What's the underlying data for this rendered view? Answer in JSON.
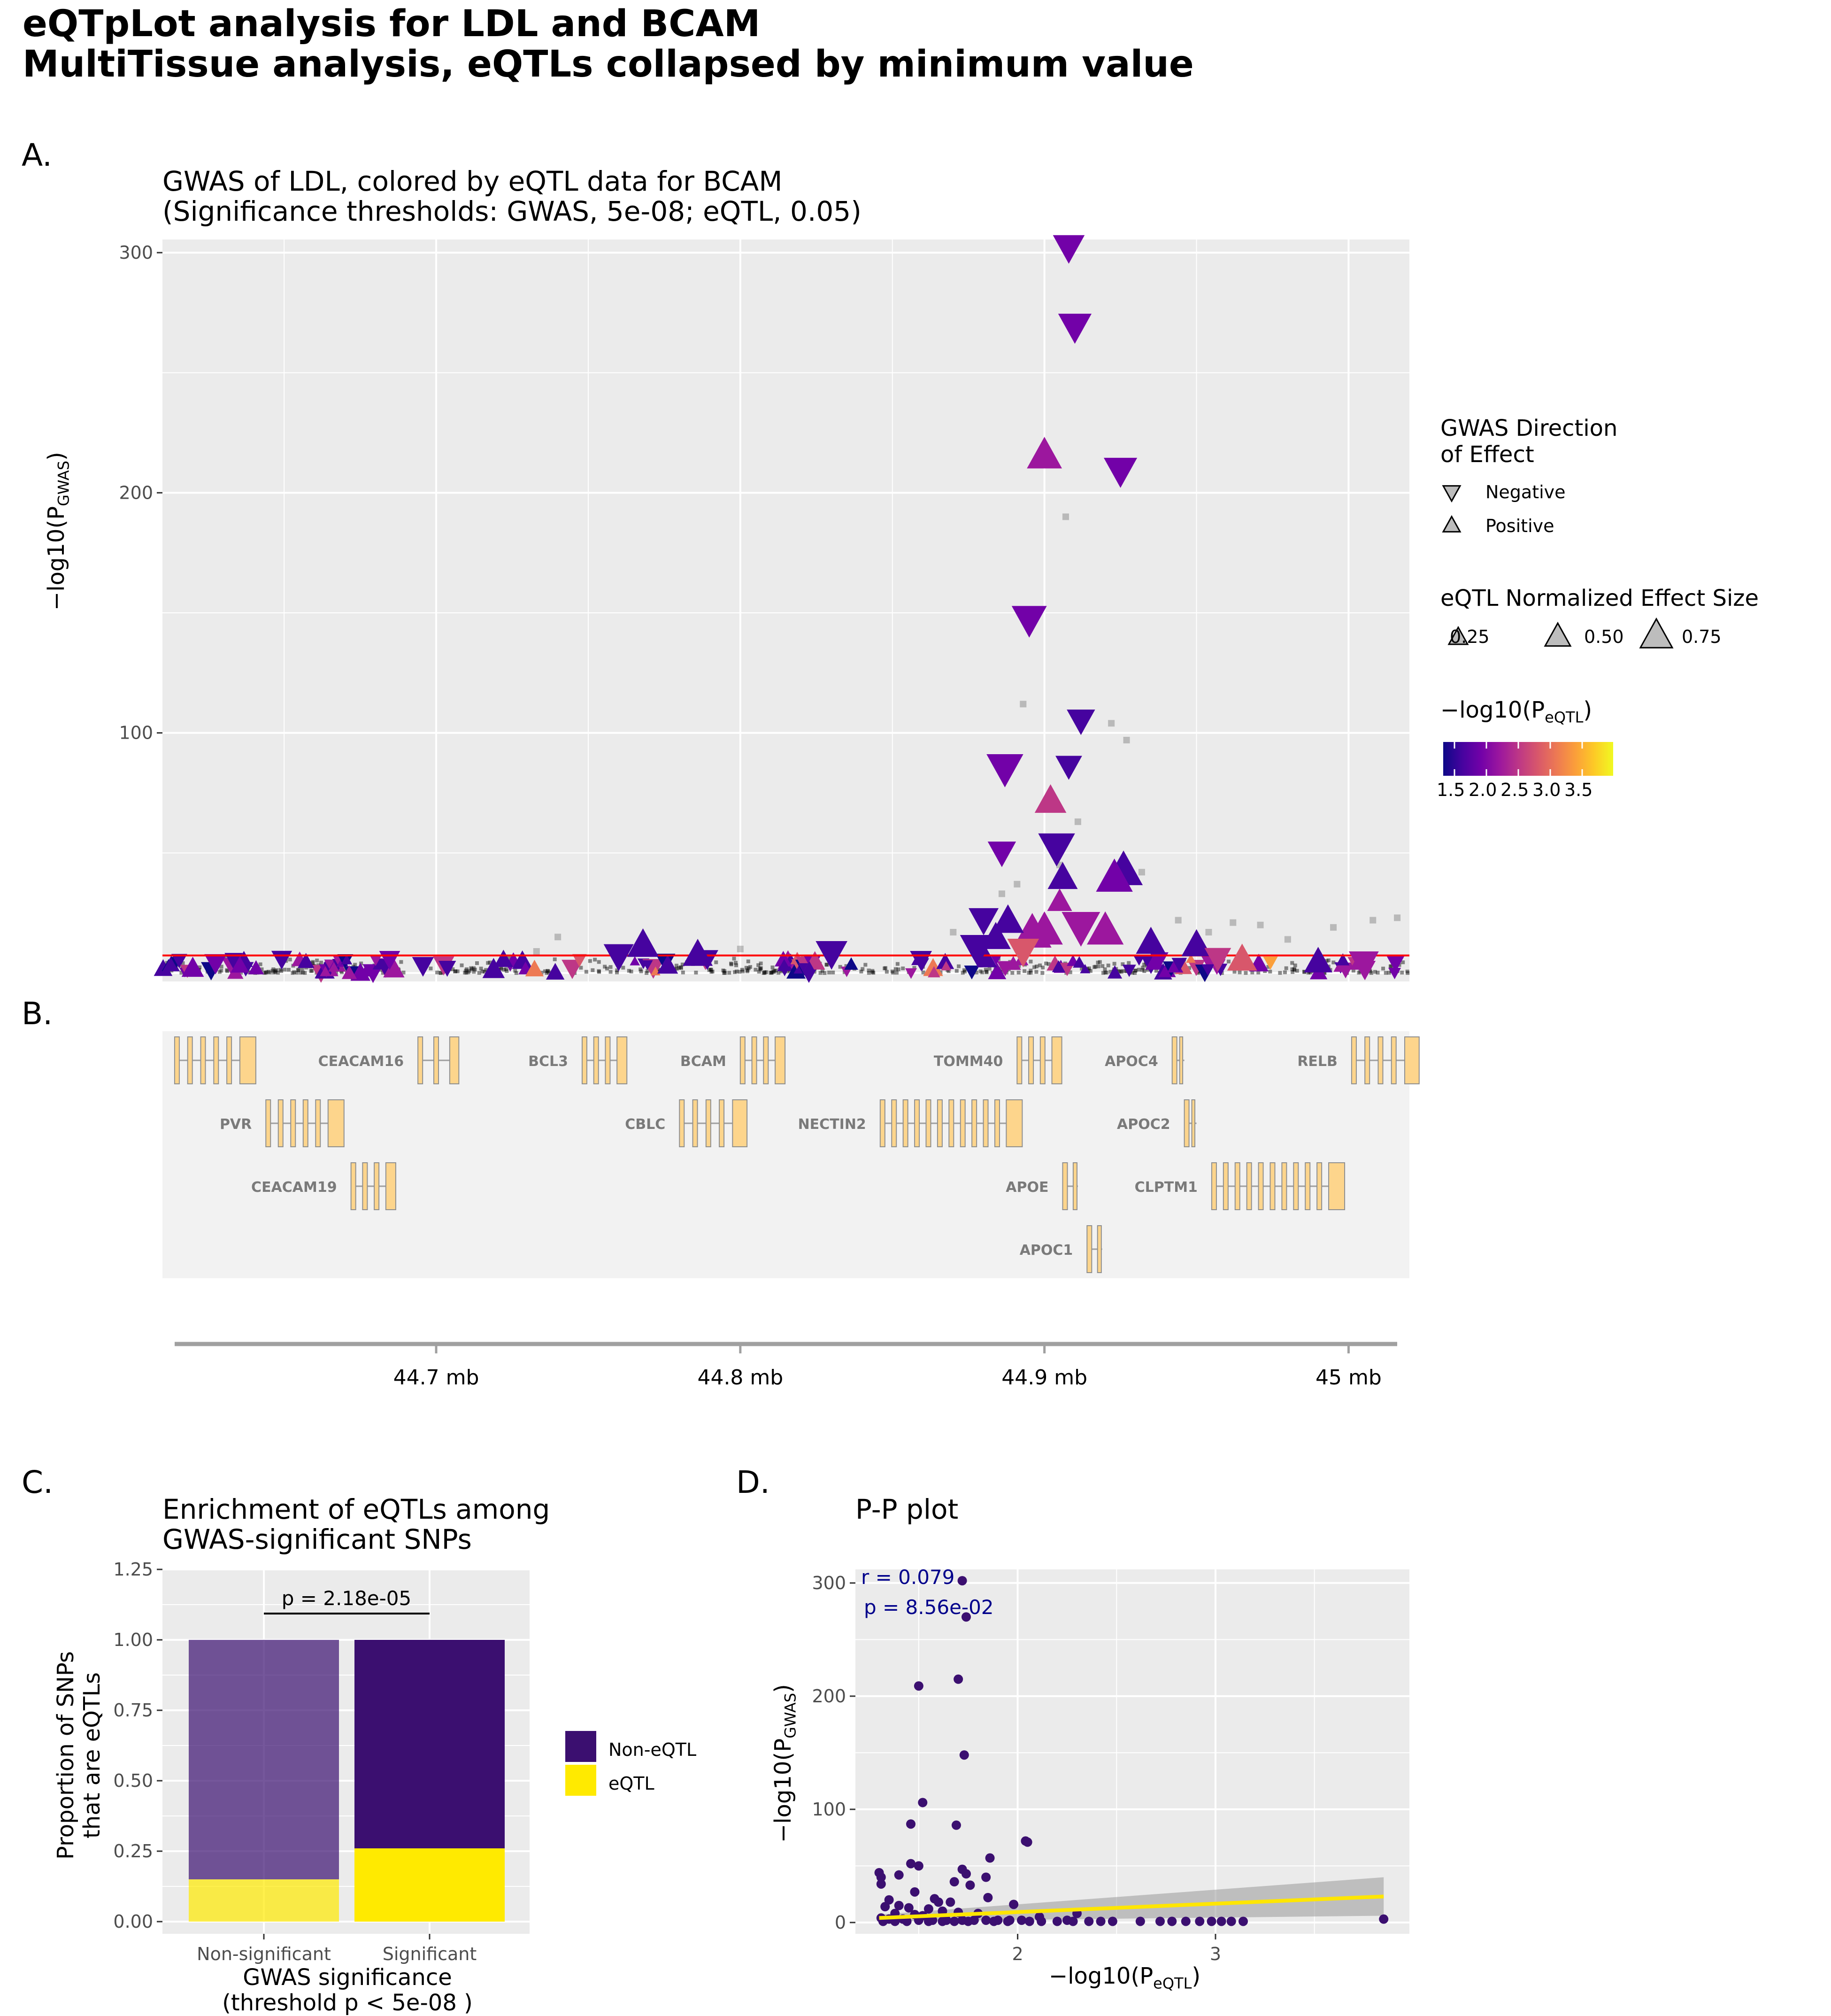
{
  "title": {
    "line1": "eQTpLot analysis for LDL and BCAM",
    "line2": "MultiTissue analysis, eQTLs collapsed by minimum value"
  },
  "panels": {
    "A": "A.",
    "B": "B.",
    "C": "C.",
    "D": "D."
  },
  "colors": {
    "panel_bg": "#ebebeb",
    "gene_track_bg": "#f2f2f2",
    "grid": "#ffffff",
    "threshold_line": "#ff0000",
    "gene_fill": "#fdd58c",
    "non_eqtl": "#3b0f70",
    "eqtl": "#ffea00",
    "smooth": "#ffe600",
    "annotation": "#00008b",
    "palette": [
      "#0d0887",
      "#46039f",
      "#7201a8",
      "#9c179e",
      "#bd3786",
      "#d8576b",
      "#ed7953",
      "#fb9f3a",
      "#fdca26",
      "#f0f921"
    ]
  },
  "legend_gwas": {
    "title_line1": "GWAS Direction",
    "title_line2": "of Effect",
    "items": [
      "Negative",
      "Positive"
    ]
  },
  "legend_size": {
    "title": "eQTL Normalized Effect Size",
    "items": [
      "0.25",
      "0.50",
      "0.75"
    ]
  },
  "legend_color": {
    "title_prefix": "−log10(P",
    "title_sub": "eQTL",
    "title_suffix": ")",
    "ticks": [
      "1.5",
      "2.0",
      "2.5",
      "3.0",
      "3.5"
    ]
  },
  "chart_data": [
    {
      "id": "A",
      "type": "scatter",
      "title_line1": "GWAS of LDL, colored by eQTL data for BCAM",
      "title_line2": "(Significance thresholds: GWAS, 5e-08; eQTL, 0.05)",
      "ylabel_prefix": "−log10(P",
      "ylabel_sub": "GWAS",
      "ylabel_suffix": ")",
      "xlim_mb": [
        44.61,
        45.02
      ],
      "ylim": [
        0,
        300
      ],
      "yticks": [
        "100",
        "200",
        "300"
      ],
      "threshold": 7.3,
      "eqtl_points": [
        {
          "x": 44.908,
          "y": 302,
          "dir": "neg",
          "size": 0.55,
          "p": 1.9
        },
        {
          "x": 44.91,
          "y": 269,
          "dir": "neg",
          "size": 0.6,
          "p": 1.8
        },
        {
          "x": 44.9,
          "y": 216,
          "dir": "pos",
          "size": 0.65,
          "p": 2.0
        },
        {
          "x": 44.925,
          "y": 209,
          "dir": "neg",
          "size": 0.6,
          "p": 1.8
        },
        {
          "x": 44.895,
          "y": 147,
          "dir": "neg",
          "size": 0.65,
          "p": 1.9
        },
        {
          "x": 44.912,
          "y": 105,
          "dir": "neg",
          "size": 0.45,
          "p": 1.7
        },
        {
          "x": 44.887,
          "y": 85,
          "dir": "neg",
          "size": 0.7,
          "p": 1.8
        },
        {
          "x": 44.908,
          "y": 86,
          "dir": "neg",
          "size": 0.4,
          "p": 1.7
        },
        {
          "x": 44.902,
          "y": 72,
          "dir": "pos",
          "size": 0.55,
          "p": 2.5
        },
        {
          "x": 44.904,
          "y": 52,
          "dir": "neg",
          "size": 0.7,
          "p": 1.6
        },
        {
          "x": 44.886,
          "y": 50,
          "dir": "neg",
          "size": 0.45,
          "p": 1.8
        },
        {
          "x": 44.926,
          "y": 43,
          "dir": "pos",
          "size": 0.75,
          "p": 1.5
        },
        {
          "x": 44.923,
          "y": 40,
          "dir": "pos",
          "size": 0.7,
          "p": 1.9
        },
        {
          "x": 44.906,
          "y": 40,
          "dir": "pos",
          "size": 0.5,
          "p": 1.7
        },
        {
          "x": 44.905,
          "y": 30,
          "dir": "pos",
          "size": 0.35,
          "p": 2.2
        },
        {
          "x": 44.88,
          "y": 22,
          "dir": "neg",
          "size": 0.5,
          "p": 1.6
        },
        {
          "x": 44.896,
          "y": 17,
          "dir": "pos",
          "size": 0.75,
          "p": 2.0
        },
        {
          "x": 44.9,
          "y": 18,
          "dir": "pos",
          "size": 0.7,
          "p": 2.2
        },
        {
          "x": 44.912,
          "y": 19,
          "dir": "neg",
          "size": 0.75,
          "p": 2.0
        },
        {
          "x": 44.92,
          "y": 18,
          "dir": "pos",
          "size": 0.7,
          "p": 2.1
        },
        {
          "x": 44.888,
          "y": 22,
          "dir": "pos",
          "size": 0.55,
          "p": 1.6
        },
        {
          "x": 44.884,
          "y": 15,
          "dir": "pos",
          "size": 0.5,
          "p": 1.6
        },
        {
          "x": 44.878,
          "y": 10,
          "dir": "neg",
          "size": 0.65,
          "p": 1.7
        },
        {
          "x": 44.893,
          "y": 9,
          "dir": "neg",
          "size": 0.55,
          "p": 2.6
        },
        {
          "x": 44.935,
          "y": 13,
          "dir": "pos",
          "size": 0.5,
          "p": 1.5
        },
        {
          "x": 44.95,
          "y": 12,
          "dir": "pos",
          "size": 0.5,
          "p": 1.5
        },
        {
          "x": 44.768,
          "y": 12,
          "dir": "pos",
          "size": 0.55,
          "p": 1.6
        },
        {
          "x": 44.786,
          "y": 8,
          "dir": "pos",
          "size": 0.5,
          "p": 1.6
        },
        {
          "x": 44.83,
          "y": 8,
          "dir": "neg",
          "size": 0.55,
          "p": 1.5
        },
        {
          "x": 44.76,
          "y": 7,
          "dir": "neg",
          "size": 0.5,
          "p": 1.5
        },
        {
          "x": 44.957,
          "y": 6,
          "dir": "neg",
          "size": 0.4,
          "p": 2.4
        },
        {
          "x": 44.965,
          "y": 6,
          "dir": "pos",
          "size": 0.5,
          "p": 2.7
        },
        {
          "x": 44.99,
          "y": 5,
          "dir": "pos",
          "size": 0.45,
          "p": 1.7
        },
        {
          "x": 45.005,
          "y": 4,
          "dir": "neg",
          "size": 0.5,
          "p": 2.0
        }
      ],
      "background_points": [
        {
          "x": 44.907,
          "y": 190
        },
        {
          "x": 44.893,
          "y": 112
        },
        {
          "x": 44.922,
          "y": 104
        },
        {
          "x": 44.927,
          "y": 97
        },
        {
          "x": 44.911,
          "y": 63
        },
        {
          "x": 44.905,
          "y": 45
        },
        {
          "x": 44.891,
          "y": 37
        },
        {
          "x": 44.932,
          "y": 42
        },
        {
          "x": 44.886,
          "y": 33
        },
        {
          "x": 44.74,
          "y": 15
        },
        {
          "x": 44.944,
          "y": 22
        },
        {
          "x": 44.962,
          "y": 21
        },
        {
          "x": 44.971,
          "y": 20
        },
        {
          "x": 44.995,
          "y": 19
        },
        {
          "x": 45.008,
          "y": 22
        },
        {
          "x": 45.016,
          "y": 23
        },
        {
          "x": 44.87,
          "y": 17
        },
        {
          "x": 44.954,
          "y": 17
        },
        {
          "x": 44.98,
          "y": 14
        },
        {
          "x": 44.733,
          "y": 9
        },
        {
          "x": 44.8,
          "y": 10
        }
      ],
      "genes": [
        {
          "name": "CEACAM16",
          "label_row": 0,
          "start": 44.694,
          "end": 44.706,
          "label_side": "left"
        },
        {
          "name": "BCL3",
          "label_row": 0,
          "start": 44.748,
          "end": 44.761,
          "label_side": "left"
        },
        {
          "name": "BCAM",
          "label_row": 0,
          "start": 44.8,
          "end": 44.813,
          "label_side": "left"
        },
        {
          "name": "TOMM40",
          "label_row": 0,
          "start": 44.891,
          "end": 44.904,
          "label_side": "left"
        },
        {
          "name": "APOC4",
          "label_row": 0,
          "start": 44.942,
          "end": 44.946,
          "label_side": "left"
        },
        {
          "name": "RELB",
          "label_row": 0,
          "start": 45.001,
          "end": 45.02,
          "label_side": "left"
        },
        {
          "name": "PVR",
          "label_row": 1,
          "start": 44.644,
          "end": 44.666,
          "label_side": "left"
        },
        {
          "name": "CBLC",
          "label_row": 1,
          "start": 44.78,
          "end": 44.799,
          "label_side": "left"
        },
        {
          "name": "NECTIN2",
          "label_row": 1,
          "start": 44.846,
          "end": 44.889,
          "label_side": "left"
        },
        {
          "name": "APOC2",
          "label_row": 1,
          "start": 44.946,
          "end": 44.95,
          "label_side": "left"
        },
        {
          "name": "CEACAM19",
          "label_row": 2,
          "start": 44.672,
          "end": 44.685,
          "label_side": "left"
        },
        {
          "name": "APOE",
          "label_row": 2,
          "start": 44.906,
          "end": 44.911,
          "label_side": "left"
        },
        {
          "name": "CLPTM1",
          "label_row": 2,
          "start": 44.955,
          "end": 44.995,
          "label_side": "left"
        },
        {
          "name": "APOC1",
          "label_row": 3,
          "start": 44.914,
          "end": 44.919,
          "label_side": "left"
        },
        {
          "name": "",
          "label_row": 0,
          "start": 44.614,
          "end": 44.637,
          "label_side": "none"
        }
      ],
      "xticks": [
        "44.7 mb",
        "44.8 mb",
        "44.9 mb",
        "45 mb"
      ],
      "xtick_values": [
        44.7,
        44.8,
        44.9,
        45.0
      ]
    },
    {
      "id": "C",
      "type": "bar",
      "title_line1": "Enrichment of eQTLs among",
      "title_line2": "GWAS-significant SNPs",
      "categories": [
        "Non-significant",
        "Significant"
      ],
      "series": [
        {
          "name": "Non-eQTL",
          "values": [
            0.85,
            0.74
          ]
        },
        {
          "name": "eQTL",
          "values": [
            0.15,
            0.26
          ]
        }
      ],
      "ylim": [
        0,
        1.25
      ],
      "yticks": [
        "0.00",
        "0.25",
        "0.50",
        "0.75",
        "1.00",
        "1.25"
      ],
      "ylabel_line1": "Proportion of SNPs",
      "ylabel_line2": "that are eQTLs",
      "xlabel_line1": "GWAS significance",
      "xlabel_line2": "(threshold p < 5e-08 )",
      "annotation": "p = 2.18e-05",
      "legend": [
        "Non-eQTL",
        "eQTL"
      ]
    },
    {
      "id": "D",
      "type": "scatter",
      "title": "P-P plot",
      "xlabel_prefix": "−log10(P",
      "xlabel_sub": "eQTL",
      "xlabel_suffix": ")",
      "ylabel_prefix": "−log10(P",
      "ylabel_sub": "GWAS",
      "ylabel_suffix": ")",
      "xlim": [
        1.18,
        3.98
      ],
      "ylim": [
        -10,
        312
      ],
      "xticks": [
        "2",
        "3"
      ],
      "xtick_values": [
        2,
        3
      ],
      "yticks": [
        "0",
        "100",
        "200",
        "300"
      ],
      "ytick_values": [
        0,
        100,
        200,
        300
      ],
      "annotation_r": "r = 0.079",
      "annotation_p": "p = 8.56e-02",
      "smooth": {
        "x0": 1.3,
        "y0": 4,
        "x1": 3.85,
        "y1": 23,
        "band_lo1": 6,
        "band_hi1": 40
      },
      "points": [
        [
          1.72,
          302
        ],
        [
          1.74,
          270
        ],
        [
          1.7,
          215
        ],
        [
          1.5,
          209
        ],
        [
          1.73,
          148
        ],
        [
          1.52,
          106
        ],
        [
          1.69,
          86
        ],
        [
          1.46,
          87
        ],
        [
          2.04,
          72
        ],
        [
          2.05,
          71
        ],
        [
          1.86,
          57
        ],
        [
          1.46,
          52
        ],
        [
          1.5,
          50
        ],
        [
          1.72,
          47
        ],
        [
          1.74,
          43
        ],
        [
          1.3,
          44
        ],
        [
          1.31,
          40
        ],
        [
          1.4,
          42
        ],
        [
          1.84,
          40
        ],
        [
          1.68,
          36
        ],
        [
          1.31,
          34
        ],
        [
          1.76,
          33
        ],
        [
          1.48,
          27
        ],
        [
          1.85,
          22
        ],
        [
          1.66,
          18
        ],
        [
          1.58,
          21
        ],
        [
          1.35,
          20
        ],
        [
          1.6,
          18
        ],
        [
          1.98,
          16
        ],
        [
          1.4,
          15
        ],
        [
          1.33,
          14
        ],
        [
          1.45,
          13
        ],
        [
          1.55,
          12
        ],
        [
          1.62,
          10
        ],
        [
          1.7,
          9
        ],
        [
          1.8,
          8
        ],
        [
          2.3,
          8
        ],
        [
          1.38,
          8
        ],
        [
          1.48,
          7
        ],
        [
          1.52,
          6
        ],
        [
          2.11,
          5
        ],
        [
          2.25,
          2
        ],
        [
          1.31,
          4
        ],
        [
          1.35,
          3
        ],
        [
          1.42,
          3
        ],
        [
          1.5,
          2
        ],
        [
          1.57,
          2
        ],
        [
          1.64,
          2
        ],
        [
          1.72,
          2
        ],
        [
          1.78,
          2
        ],
        [
          1.84,
          2
        ],
        [
          1.9,
          2
        ],
        [
          1.96,
          2
        ],
        [
          2.02,
          2
        ],
        [
          2.2,
          1
        ],
        [
          2.28,
          1
        ],
        [
          2.36,
          1
        ],
        [
          2.42,
          1
        ],
        [
          2.62,
          1
        ],
        [
          2.72,
          1
        ],
        [
          2.78,
          1
        ],
        [
          2.85,
          1
        ],
        [
          2.92,
          1
        ],
        [
          2.98,
          1
        ],
        [
          3.03,
          1
        ],
        [
          3.08,
          1
        ],
        [
          3.14,
          1
        ],
        [
          3.85,
          3
        ],
        [
          1.32,
          1
        ],
        [
          1.38,
          1
        ],
        [
          1.44,
          1
        ],
        [
          1.55,
          1
        ],
        [
          1.62,
          1
        ],
        [
          1.68,
          1
        ],
        [
          1.75,
          1
        ],
        [
          1.88,
          1
        ],
        [
          1.95,
          1
        ],
        [
          2.06,
          1
        ],
        [
          2.12,
          1
        ],
        [
          2.48,
          1
        ]
      ]
    }
  ]
}
